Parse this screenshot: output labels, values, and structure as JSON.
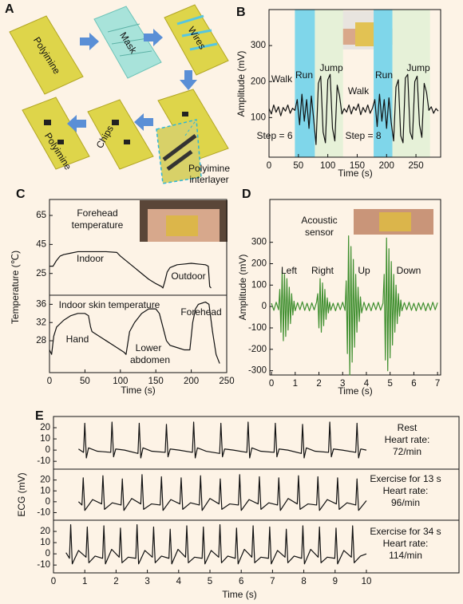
{
  "panels": [
    "A",
    "B",
    "C",
    "D",
    "E"
  ],
  "diagram": {
    "steps": [
      "Polyimine",
      "Mask",
      "Wires",
      "Chips",
      "Polyimine"
    ],
    "interlayer": [
      "Polyimine",
      "interlayer"
    ]
  },
  "chart_data": [
    {
      "type": "line",
      "y_label": "Amplitude (mV)",
      "x_label": "Time (s)",
      "xlim": [
        0,
        292
      ],
      "ylim": [
        -10,
        400
      ],
      "xticks": [
        0,
        50,
        100,
        150,
        200,
        250
      ],
      "yticks": [
        100,
        200,
        300
      ],
      "annotations": [
        "Walk",
        "Run",
        "Jump",
        "Walk",
        "Run",
        "Jump",
        "Step = 6",
        "Step = 8"
      ],
      "regions": [
        {
          "x": [
            44,
            78
          ],
          "color": "#7fd6ea"
        },
        {
          "x": [
            78,
            126
          ],
          "color": "#e6f1d8"
        },
        {
          "x": [
            178,
            210
          ],
          "color": "#7fd6ea"
        },
        {
          "x": [
            210,
            274
          ],
          "color": "#e6f1d8"
        }
      ],
      "x": [
        0,
        4,
        8,
        12,
        16,
        20,
        24,
        28,
        32,
        36,
        40,
        44,
        48,
        52,
        56,
        60,
        64,
        68,
        72,
        76,
        80,
        84,
        88,
        92,
        96,
        100,
        104,
        108,
        112,
        116,
        120,
        124,
        128,
        132,
        136,
        140,
        144,
        148,
        152,
        156,
        160,
        164,
        168,
        172,
        176,
        180,
        184,
        188,
        192,
        196,
        200,
        204,
        208,
        212,
        216,
        220,
        224,
        228,
        232,
        236,
        240,
        244,
        248,
        252,
        256,
        260,
        264,
        268,
        272,
        276,
        280,
        284,
        288
      ],
      "series": [
        {
          "color": "#111111",
          "values": [
            125,
            110,
            135,
            115,
            130,
            105,
            128,
            118,
            135,
            112,
            126,
            120,
            150,
            80,
            165,
            90,
            150,
            70,
            160,
            95,
            25,
            195,
            215,
            60,
            30,
            205,
            220,
            70,
            35,
            190,
            160,
            110,
            125,
            115,
            135,
            110,
            130,
            120,
            138,
            108,
            128,
            115,
            135,
            112,
            126,
            150,
            75,
            165,
            90,
            150,
            70,
            155,
            85,
            35,
            185,
            205,
            50,
            30,
            210,
            220,
            60,
            40,
            200,
            215,
            80,
            45,
            195,
            170,
            120,
            130,
            112,
            125,
            118
          ]
        }
      ]
    },
    {
      "type": "line",
      "y_label": "Temperature (℃)",
      "xlim": [
        0,
        250
      ],
      "ylim": [
        10,
        76
      ],
      "yticks": [
        25,
        45,
        65
      ],
      "annotations": [
        "Forehead",
        "temperature",
        "Indoor",
        "Outdoor"
      ],
      "x": [
        0,
        5,
        10,
        15,
        20,
        30,
        40,
        60,
        80,
        95,
        100,
        110,
        120,
        130,
        140,
        150,
        158,
        160,
        163,
        166,
        170,
        180,
        190,
        200,
        210,
        220,
        224,
        226,
        228
      ],
      "series": [
        {
          "color": "#111111",
          "values": [
            30,
            30,
            34,
            37,
            38,
            39,
            40,
            40,
            40,
            39.5,
            37,
            33,
            29,
            25,
            21,
            18,
            16,
            15,
            20,
            26,
            29,
            31,
            31.5,
            32,
            31.5,
            31,
            30,
            16,
            15
          ]
        }
      ]
    },
    {
      "type": "line",
      "x_label": "Time (s)",
      "xlim": [
        0,
        250
      ],
      "ylim": [
        21,
        38
      ],
      "xticks": [
        0,
        50,
        100,
        150,
        200,
        250
      ],
      "yticks": [
        28,
        32,
        36
      ],
      "annotations": [
        "Indoor skin temperature",
        "Hand",
        "Lower",
        "abdomen",
        "Forehead"
      ],
      "x": [
        0,
        3,
        6,
        10,
        20,
        30,
        40,
        50,
        55,
        58,
        60,
        70,
        80,
        90,
        100,
        105,
        108,
        110,
        113,
        120,
        130,
        140,
        150,
        155,
        160,
        165,
        170,
        180,
        190,
        198,
        202,
        206,
        210,
        220,
        225,
        230,
        235,
        240
      ],
      "series": [
        {
          "color": "#111111",
          "values": [
            26,
            25,
            29,
            31,
            32.5,
            33.5,
            34,
            34,
            33.5,
            31,
            30,
            29,
            28,
            27,
            26,
            25.5,
            25,
            27,
            30,
            32,
            34,
            35,
            35,
            34,
            31,
            28,
            27,
            26.5,
            26,
            26,
            32,
            35,
            36,
            36.5,
            36,
            30,
            25,
            23
          ]
        }
      ]
    },
    {
      "type": "line",
      "y_label": "Amplitude (mV)",
      "x_label": "Time (s)",
      "xlim": [
        -0.07,
        7.13
      ],
      "ylim": [
        -320,
        500
      ],
      "xticks": [
        0,
        1,
        2,
        3,
        4,
        5,
        6,
        7
      ],
      "yticks": [
        -300,
        -200,
        -100,
        0,
        100,
        200,
        300
      ],
      "annotations": [
        "Acoustic",
        "sensor",
        "Left",
        "Right",
        "Up",
        "Down"
      ],
      "x": [
        0,
        0.1,
        0.2,
        0.3,
        0.35,
        0.4,
        0.45,
        0.5,
        0.55,
        0.6,
        0.65,
        0.7,
        0.75,
        0.8,
        0.85,
        0.9,
        0.95,
        1,
        1.1,
        1.2,
        1.3,
        1.4,
        1.5,
        1.6,
        1.7,
        1.8,
        1.9,
        1.95,
        2,
        2.05,
        2.1,
        2.15,
        2.2,
        2.25,
        2.3,
        2.35,
        2.4,
        2.45,
        2.5,
        2.6,
        2.7,
        2.8,
        2.9,
        3,
        3.1,
        3.15,
        3.2,
        3.25,
        3.3,
        3.35,
        3.4,
        3.45,
        3.5,
        3.55,
        3.6,
        3.65,
        3.7,
        3.75,
        3.8,
        3.9,
        4,
        4.1,
        4.2,
        4.3,
        4.4,
        4.5,
        4.6,
        4.7,
        4.75,
        4.8,
        4.85,
        4.9,
        4.95,
        5,
        5.05,
        5.1,
        5.15,
        5.2,
        5.25,
        5.3,
        5.35,
        5.4,
        5.45,
        5.5,
        5.6,
        5.7,
        5.8,
        5.9,
        6,
        6.1,
        6.2,
        6.3,
        6.4,
        6.5,
        6.6,
        6.7,
        6.8,
        6.9,
        7
      ],
      "series": [
        {
          "color": "#3f8f2f",
          "values": [
            15,
            -18,
            20,
            -15,
            80,
            -120,
            170,
            -160,
            150,
            -140,
            130,
            -110,
            90,
            -80,
            60,
            -40,
            25,
            -20,
            18,
            -15,
            22,
            -18,
            15,
            -20,
            17,
            -16,
            20,
            60,
            -100,
            130,
            -120,
            110,
            -90,
            80,
            -60,
            40,
            -30,
            20,
            -18,
            15,
            -20,
            17,
            -15,
            20,
            -18,
            120,
            -220,
            330,
            -320,
            280,
            -260,
            220,
            -190,
            150,
            -120,
            90,
            -70,
            45,
            -30,
            20,
            -18,
            15,
            -20,
            18,
            -15,
            20,
            -17,
            15,
            150,
            -250,
            320,
            -300,
            270,
            -240,
            210,
            -180,
            150,
            -120,
            100,
            -80,
            60,
            -45,
            30,
            -20,
            18,
            -15,
            20,
            -18,
            15,
            -20,
            17,
            -15,
            18,
            -20,
            15,
            -17,
            20,
            -15,
            18
          ]
        }
      ]
    },
    {
      "type": "line",
      "xlim": [
        0,
        12.96
      ],
      "ylim": [
        -17,
        30
      ],
      "yticks": [
        -10,
        0,
        10,
        20
      ],
      "annotations": [
        "Rest",
        "Heart rate:",
        "72/min"
      ],
      "x": [
        0.8,
        0.96,
        1,
        1.05,
        1.12,
        1.4,
        1.83,
        1.87,
        1.92,
        1.99,
        2.27,
        2.7,
        2.74,
        2.79,
        2.86,
        3.14,
        3.57,
        3.61,
        3.66,
        3.73,
        4.01,
        4.44,
        4.48,
        4.53,
        4.6,
        4.88,
        5.31,
        5.35,
        5.4,
        5.47,
        5.75,
        6.18,
        6.22,
        6.27,
        6.34,
        6.62,
        7.05,
        7.09,
        7.14,
        7.21,
        7.49,
        7.92,
        7.96,
        8.01,
        8.08,
        8.36,
        8.79,
        8.83,
        8.88,
        8.95,
        9.23,
        9.66,
        9.7,
        9.75,
        9.82,
        10
      ],
      "series": [
        {
          "color": "#111111",
          "values": [
            1,
            -2,
            24,
            -7,
            2,
            -1,
            -2,
            25,
            -6,
            1,
            0,
            -3,
            24,
            -7,
            2,
            -1,
            -2,
            23,
            -6,
            1,
            0,
            -2,
            25,
            -7,
            2,
            -1,
            -3,
            24,
            -6,
            1,
            0,
            -2,
            25,
            -7,
            2,
            -1,
            -2,
            24,
            -6,
            1,
            0,
            -3,
            23,
            -7,
            2,
            -1,
            -2,
            25,
            -6,
            1,
            0,
            -2,
            24,
            -7,
            1,
            0
          ]
        }
      ]
    },
    {
      "type": "line",
      "y_label": "ECG (mV)",
      "xlim": [
        0,
        12.96
      ],
      "ylim": [
        -17,
        30
      ],
      "yticks": [
        -10,
        0,
        10,
        20
      ],
      "annotations": [
        "Exercise for 13 s",
        "Heart rate:",
        "96/min"
      ],
      "x": [
        0.8,
        0.91,
        0.95,
        1,
        1.25,
        1.54,
        1.58,
        1.63,
        1.88,
        2.16,
        2.2,
        2.25,
        2.5,
        2.79,
        2.83,
        2.88,
        3.13,
        3.41,
        3.45,
        3.5,
        3.75,
        4.04,
        4.08,
        4.13,
        4.38,
        4.66,
        4.7,
        4.75,
        5,
        5.29,
        5.33,
        5.38,
        5.63,
        5.91,
        5.95,
        6,
        6.25,
        6.54,
        6.58,
        6.63,
        6.88,
        7.16,
        7.2,
        7.25,
        7.5,
        7.79,
        7.83,
        7.88,
        8.13,
        8.41,
        8.45,
        8.5,
        8.75,
        9.04,
        9.08,
        9.13,
        9.38,
        9.66,
        9.7,
        9.75,
        10
      ],
      "series": [
        {
          "color": "#111111",
          "values": [
            0,
            -3,
            22,
            -8,
            2,
            -2,
            24,
            -7,
            -1,
            -3,
            21,
            -8,
            3,
            -2,
            25,
            -7,
            -2,
            -3,
            23,
            -8,
            2,
            -2,
            22,
            -7,
            -1,
            -3,
            24,
            -8,
            3,
            -2,
            21,
            -7,
            -2,
            -3,
            25,
            -8,
            2,
            -2,
            23,
            -7,
            -1,
            -3,
            22,
            -8,
            3,
            -2,
            24,
            -7,
            -2,
            -3,
            23,
            -8,
            2,
            -2,
            22,
            -7,
            -1,
            -3,
            21,
            -8,
            1
          ]
        }
      ]
    },
    {
      "type": "line",
      "x_label": "Time (s)",
      "xlim": [
        0,
        12.96
      ],
      "ylim": [
        -17,
        30
      ],
      "xticks": [
        0,
        1,
        2,
        3,
        4,
        5,
        6,
        7,
        8,
        9,
        10
      ],
      "yticks": [
        -10,
        0,
        10,
        20
      ],
      "annotations": [
        "Exercise for 34 s",
        "Heart rate:",
        "114/min"
      ],
      "x": [
        0.4,
        0.51,
        0.55,
        0.6,
        0.8,
        1.04,
        1.08,
        1.13,
        1.33,
        1.57,
        1.61,
        1.66,
        1.86,
        2.1,
        2.14,
        2.19,
        2.39,
        2.63,
        2.67,
        2.72,
        2.92,
        3.16,
        3.2,
        3.25,
        3.45,
        3.69,
        3.73,
        3.78,
        3.98,
        4.22,
        4.26,
        4.31,
        4.51,
        4.75,
        4.79,
        4.84,
        5.04,
        5.28,
        5.32,
        5.37,
        5.57,
        5.81,
        5.85,
        5.9,
        6.1,
        6.34,
        6.38,
        6.43,
        6.63,
        6.87,
        6.91,
        6.96,
        7.16,
        7.4,
        7.44,
        7.49,
        7.69,
        7.93,
        7.97,
        8.02,
        8.22,
        8.46,
        8.5,
        8.55,
        8.75,
        8.99,
        9.03,
        9.08,
        9.28,
        9.52,
        9.56,
        9.61,
        9.81,
        10
      ],
      "series": [
        {
          "color": "#111111",
          "values": [
            1,
            -4,
            26,
            -9,
            3,
            -3,
            24,
            -8,
            -2,
            -4,
            25,
            -9,
            4,
            -3,
            23,
            -8,
            -3,
            -4,
            26,
            -9,
            3,
            -3,
            24,
            -8,
            -2,
            -4,
            22,
            -9,
            4,
            -3,
            25,
            -8,
            -3,
            -4,
            24,
            -9,
            3,
            -3,
            26,
            -8,
            -2,
            -4,
            23,
            -9,
            4,
            -3,
            25,
            -8,
            -3,
            -4,
            24,
            -9,
            3,
            -3,
            22,
            -8,
            -2,
            -4,
            25,
            -9,
            4,
            -3,
            24,
            -8,
            -3,
            -4,
            23,
            -9,
            3,
            -3,
            25,
            -8,
            -2,
            0
          ]
        }
      ]
    }
  ]
}
